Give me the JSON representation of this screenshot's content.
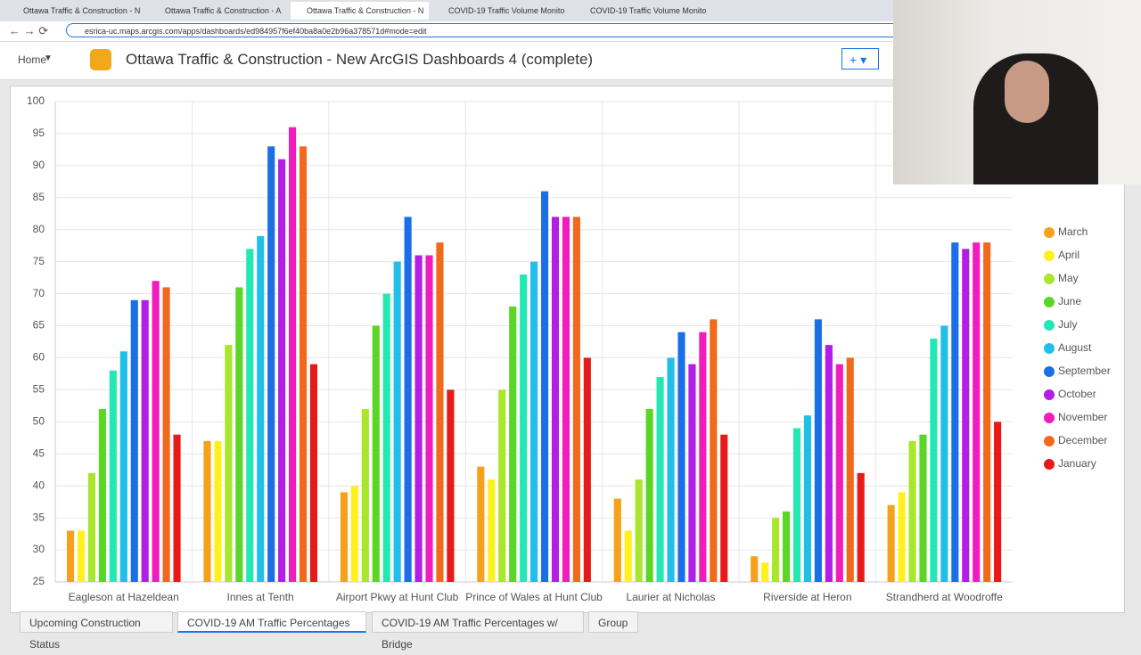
{
  "browser": {
    "tabs": [
      "Ottawa Traffic & Construction - N",
      "Ottawa Traffic & Construction - A",
      "Ottawa Traffic & Construction - N",
      "COVID-19 Traffic Volume Monito",
      "COVID-19 Traffic Volume Monito"
    ],
    "url": "esrica-uc.maps.arcgis.com/apps/dashboards/ed984957f6ef40ba8a0e2b96a378571d#mode=edit"
  },
  "header": {
    "home": "Home",
    "title": "Ottawa Traffic & Construction - New ArcGIS Dashboards 4 (complete)",
    "add": "+"
  },
  "chart_data": {
    "type": "bar",
    "categories": [
      "Eagleson at Hazeldean",
      "Innes at Tenth",
      "Airport Pkwy at Hunt Club",
      "Prince of Wales at Hunt Club",
      "Laurier at Nicholas",
      "Riverside at Heron",
      "Strandherd at Woodroffe"
    ],
    "series": [
      {
        "name": "March",
        "color": "#f5a11c",
        "values": [
          33,
          47,
          39,
          43,
          38,
          29,
          37
        ]
      },
      {
        "name": "April",
        "color": "#fff01e",
        "values": [
          33,
          47,
          40,
          41,
          33,
          28,
          39
        ]
      },
      {
        "name": "May",
        "color": "#a9e62c",
        "values": [
          42,
          62,
          52,
          55,
          41,
          35,
          47
        ]
      },
      {
        "name": "June",
        "color": "#5cd626",
        "values": [
          52,
          71,
          65,
          68,
          52,
          36,
          48
        ]
      },
      {
        "name": "July",
        "color": "#24e8b4",
        "values": [
          58,
          77,
          70,
          73,
          57,
          49,
          63
        ]
      },
      {
        "name": "August",
        "color": "#1fbfea",
        "values": [
          61,
          79,
          75,
          75,
          60,
          51,
          65
        ]
      },
      {
        "name": "September",
        "color": "#1b6fe6",
        "values": [
          69,
          93,
          82,
          86,
          64,
          66,
          78
        ]
      },
      {
        "name": "October",
        "color": "#b21ee6",
        "values": [
          69,
          91,
          76,
          82,
          59,
          62,
          77
        ]
      },
      {
        "name": "November",
        "color": "#f01cbc",
        "values": [
          72,
          96,
          76,
          82,
          64,
          59,
          78
        ]
      },
      {
        "name": "December",
        "color": "#f0691c",
        "values": [
          71,
          93,
          78,
          82,
          66,
          60,
          78
        ]
      },
      {
        "name": "January",
        "color": "#e6191b",
        "values": [
          48,
          59,
          55,
          60,
          48,
          42,
          50
        ]
      }
    ],
    "ylim": [
      25,
      100
    ],
    "yticks": [
      25,
      30,
      35,
      40,
      45,
      50,
      55,
      60,
      65,
      70,
      75,
      80,
      85,
      90,
      95,
      100
    ],
    "grid": true,
    "legend": "right"
  },
  "bottom_tabs": [
    "Upcoming Construction Status",
    "COVID-19 AM Traffic Percentages",
    "COVID-19 AM Traffic Percentages w/ Bridge",
    "Group"
  ]
}
